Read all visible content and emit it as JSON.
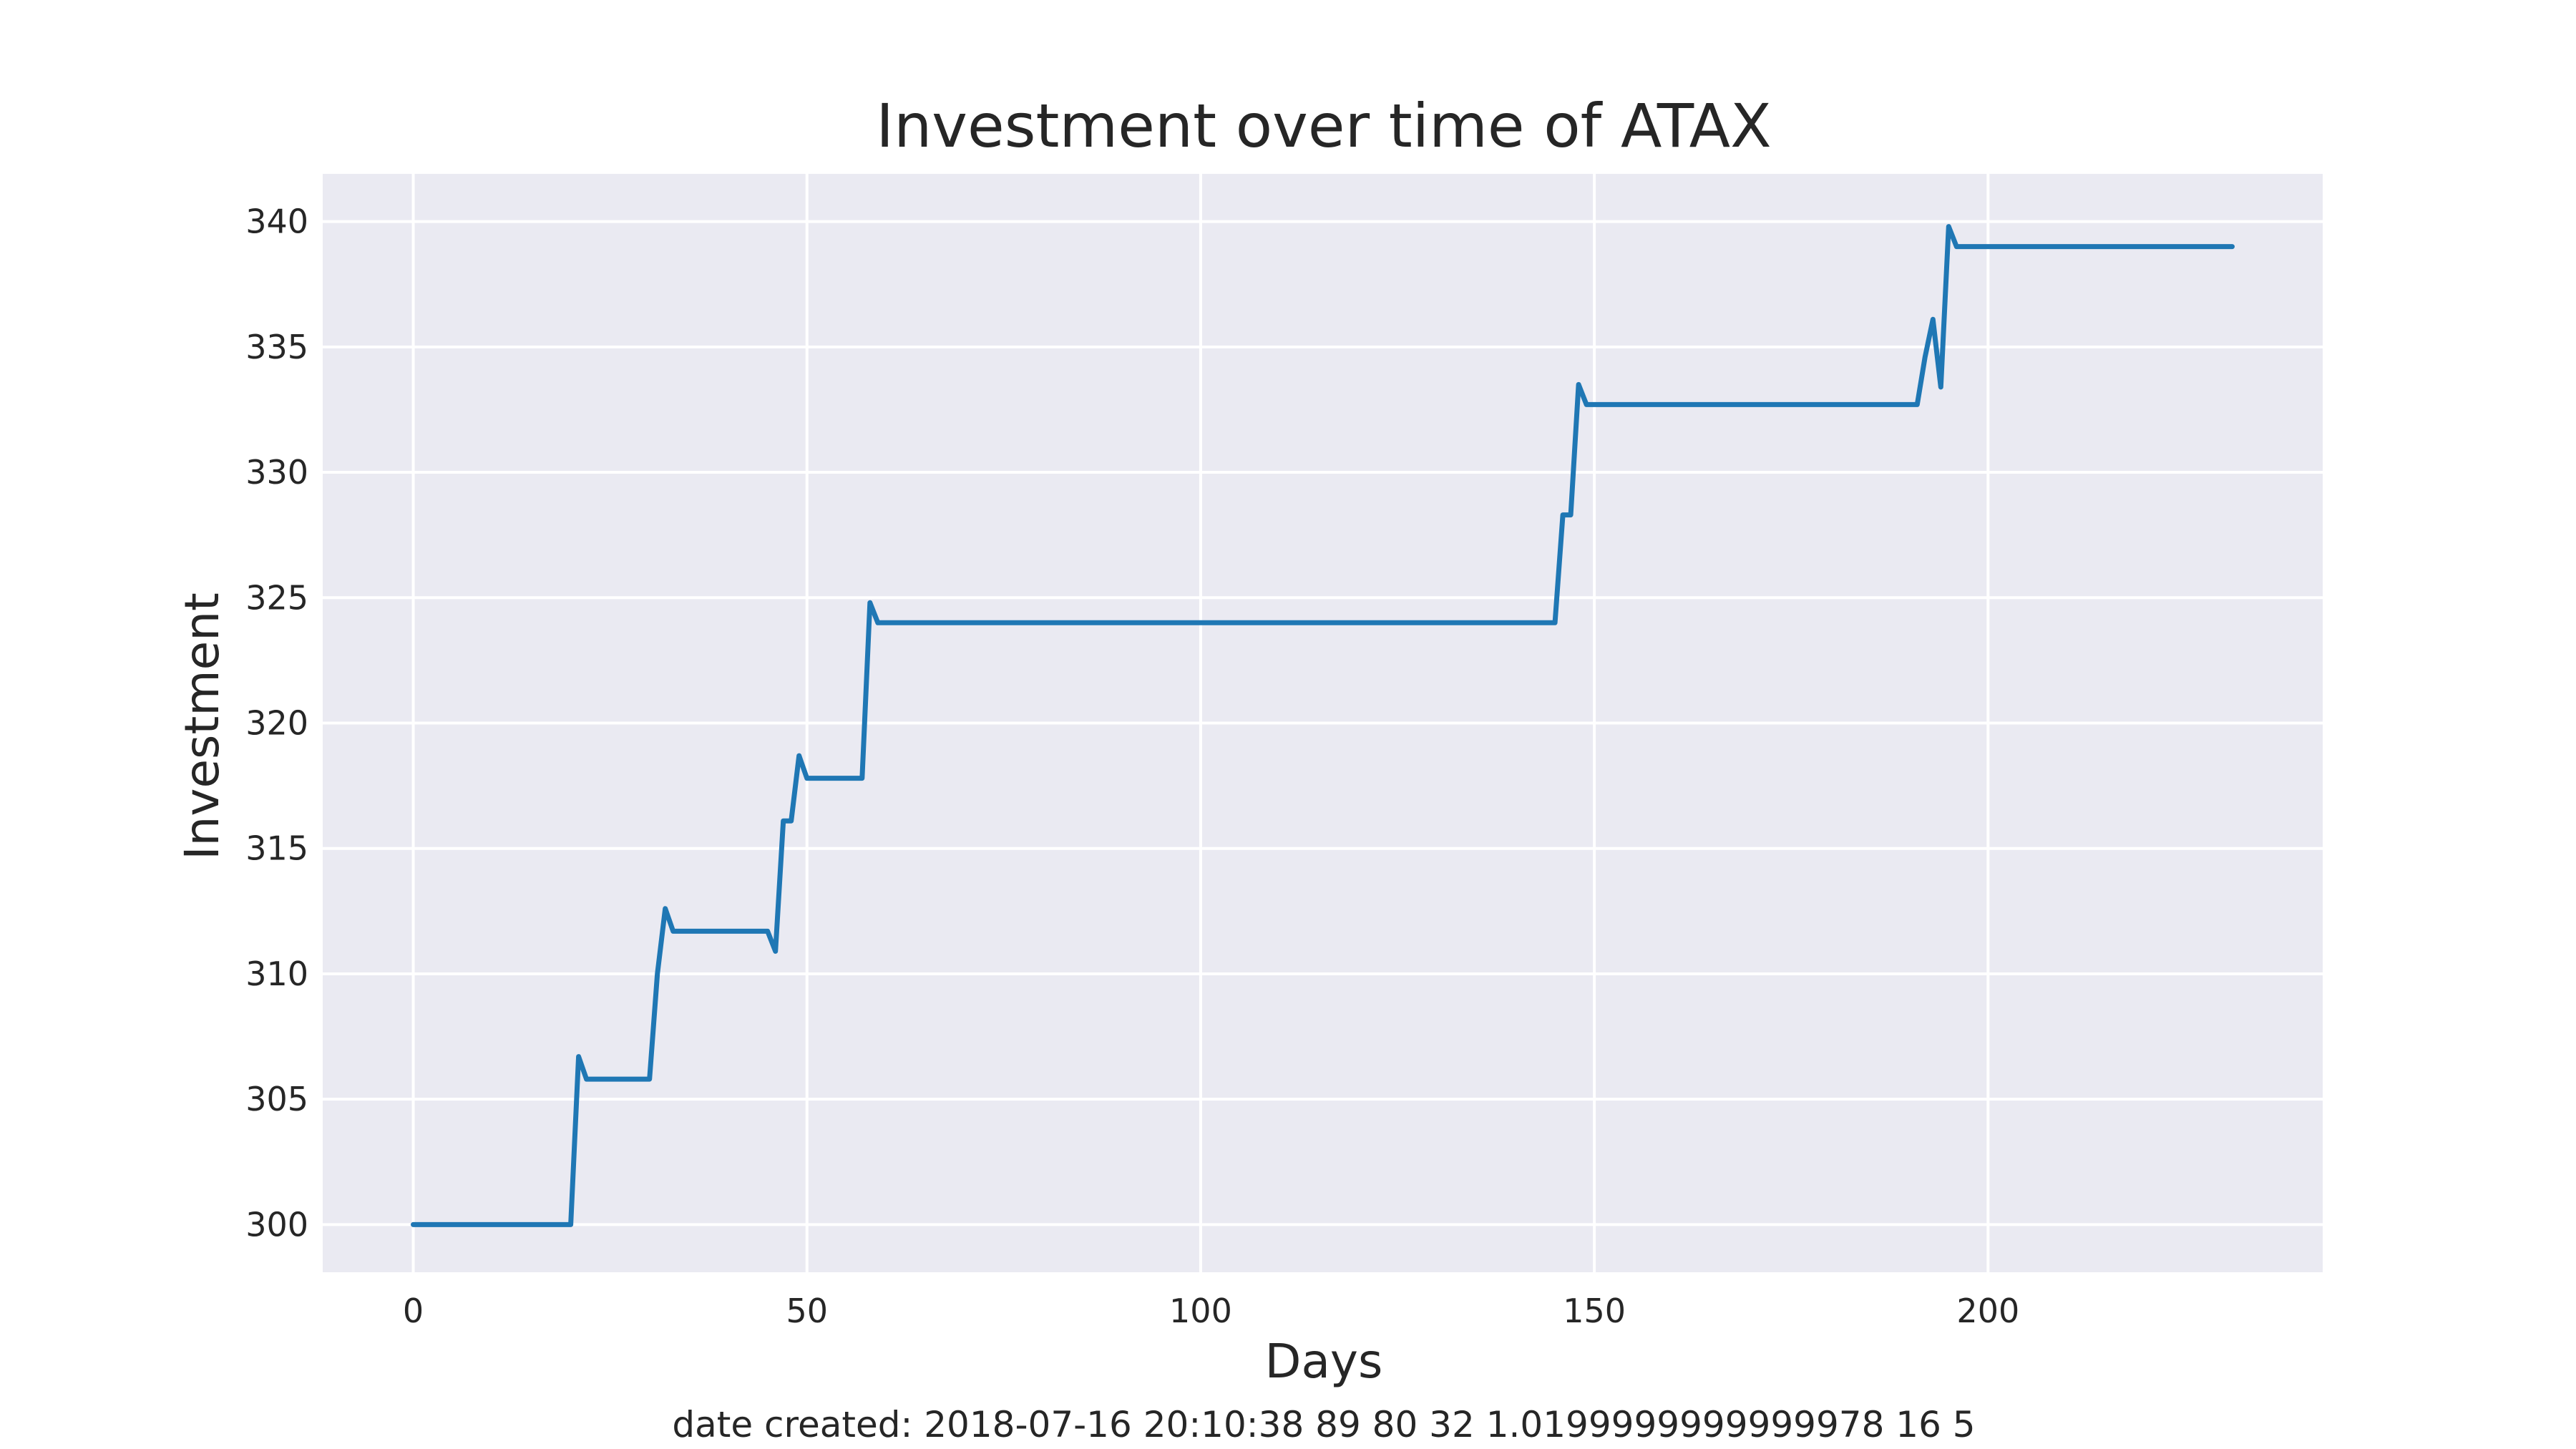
{
  "chart_data": {
    "type": "line",
    "title": "Investment over time of ATAX",
    "xlabel": "Days",
    "ylabel": "Investment",
    "footer": "date created: 2018-07-16 20:10:38 89 80 32 1.0199999999999978 16 5",
    "xlim": [
      -11.5,
      242.5
    ],
    "ylim": [
      298.1,
      341.9
    ],
    "xticks": [
      0,
      50,
      100,
      150,
      200
    ],
    "yticks": [
      300,
      305,
      310,
      315,
      320,
      325,
      330,
      335,
      340
    ],
    "grid": true,
    "colors": {
      "background": "#eaeaf2",
      "grid": "#ffffff",
      "line": "#1f77b4",
      "text": "#262626"
    },
    "series": [
      {
        "points": [
          [
            0,
            300.0
          ],
          [
            20,
            300.0
          ],
          [
            21,
            306.7
          ],
          [
            22,
            305.8
          ],
          [
            30,
            305.8
          ],
          [
            31,
            310.0
          ],
          [
            32,
            312.6
          ],
          [
            33,
            311.7
          ],
          [
            45,
            311.7
          ],
          [
            46,
            310.9
          ],
          [
            47,
            316.1
          ],
          [
            48,
            316.1
          ],
          [
            49,
            318.7
          ],
          [
            50,
            317.8
          ],
          [
            57,
            317.8
          ],
          [
            58,
            324.8
          ],
          [
            59,
            324.0
          ],
          [
            145,
            324.0
          ],
          [
            146,
            328.3
          ],
          [
            147,
            328.3
          ],
          [
            148,
            333.5
          ],
          [
            149,
            332.7
          ],
          [
            191,
            332.7
          ],
          [
            192,
            334.6
          ],
          [
            193,
            336.1
          ],
          [
            194,
            333.4
          ],
          [
            195,
            339.8
          ],
          [
            196,
            339.0
          ],
          [
            231,
            339.0
          ]
        ]
      }
    ]
  }
}
